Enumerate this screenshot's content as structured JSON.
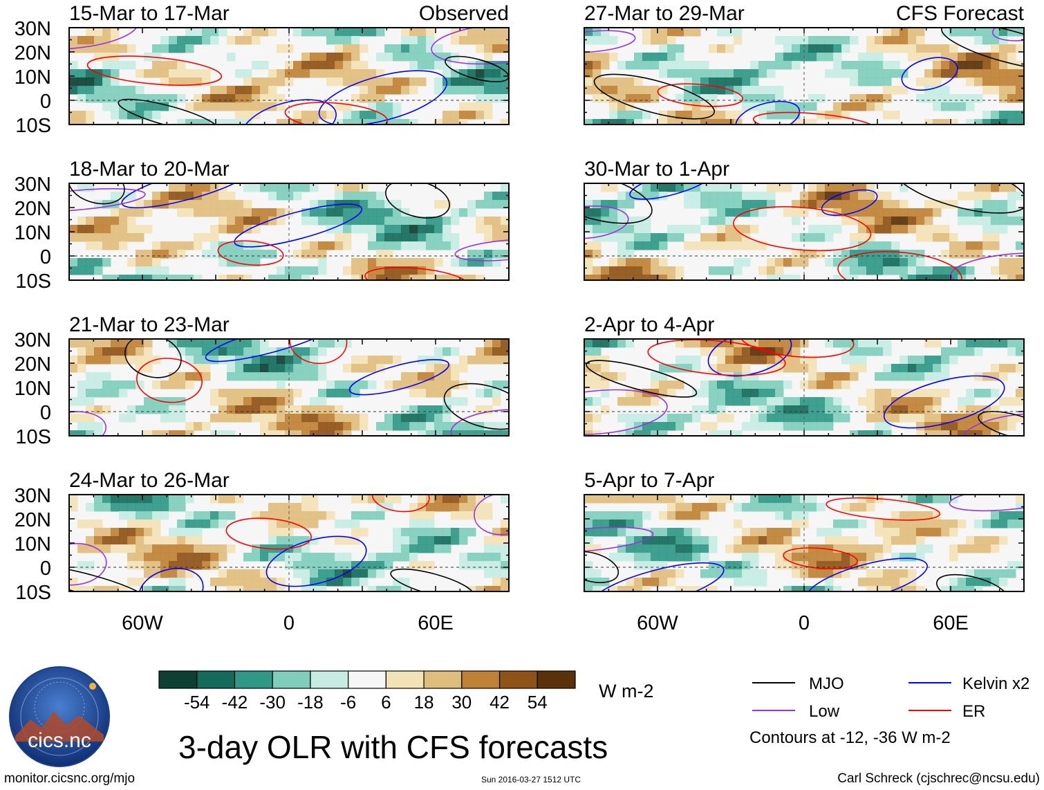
{
  "chart_data": {
    "type": "heatmap",
    "title": "3-day OLR with CFS forecasts",
    "units": "W m-2",
    "observed_label": "Observed",
    "forecast_label": "CFS Forecast",
    "lat_ticks": [
      "30N",
      "20N",
      "10N",
      "0",
      "10S"
    ],
    "lon_ticks": [
      "60W",
      "0",
      "60E"
    ],
    "lat_range": [
      -10,
      30
    ],
    "lon_range": [
      -90,
      90
    ],
    "panels": [
      {
        "title": "15-Mar to 17-Mar",
        "kind": "observed"
      },
      {
        "title": "18-Mar to 20-Mar",
        "kind": "observed"
      },
      {
        "title": "21-Mar to 23-Mar",
        "kind": "observed"
      },
      {
        "title": "24-Mar to 26-Mar",
        "kind": "observed"
      },
      {
        "title": "27-Mar to 29-Mar",
        "kind": "forecast"
      },
      {
        "title": "30-Mar to 1-Apr",
        "kind": "forecast"
      },
      {
        "title": "2-Apr to 4-Apr",
        "kind": "forecast"
      },
      {
        "title": "5-Apr to 7-Apr",
        "kind": "forecast"
      }
    ],
    "colorbar": {
      "labels": [
        "-54",
        "-42",
        "-30",
        "-18",
        "-6",
        "6",
        "18",
        "30",
        "42",
        "54"
      ],
      "colors": [
        "#0d3f33",
        "#146b5b",
        "#2f9886",
        "#7fcdbb",
        "#c6ebe3",
        "#f6f6f6",
        "#f3e2b6",
        "#dfbd7d",
        "#bf8135",
        "#8f5317",
        "#5a3109"
      ]
    },
    "legend": [
      {
        "name": "MJO",
        "color": "#000000"
      },
      {
        "name": "Kelvin x2",
        "color": "#0000ff"
      },
      {
        "name": "Low",
        "color": "#9b30e0"
      },
      {
        "name": "ER",
        "color": "#ff0000"
      }
    ],
    "contours_note": "Contours at -12, -36 W m-2"
  },
  "logo": {
    "text": "cics.nc",
    "ring_text": "Cooperative Institute for Climate and Satellites"
  },
  "footer": {
    "left": "monitor.cicsnc.org/mjo",
    "center": "Sun 2016-03-27 1512 UTC",
    "right": "Carl Schreck (cjschrec@ncsu.edu)"
  }
}
